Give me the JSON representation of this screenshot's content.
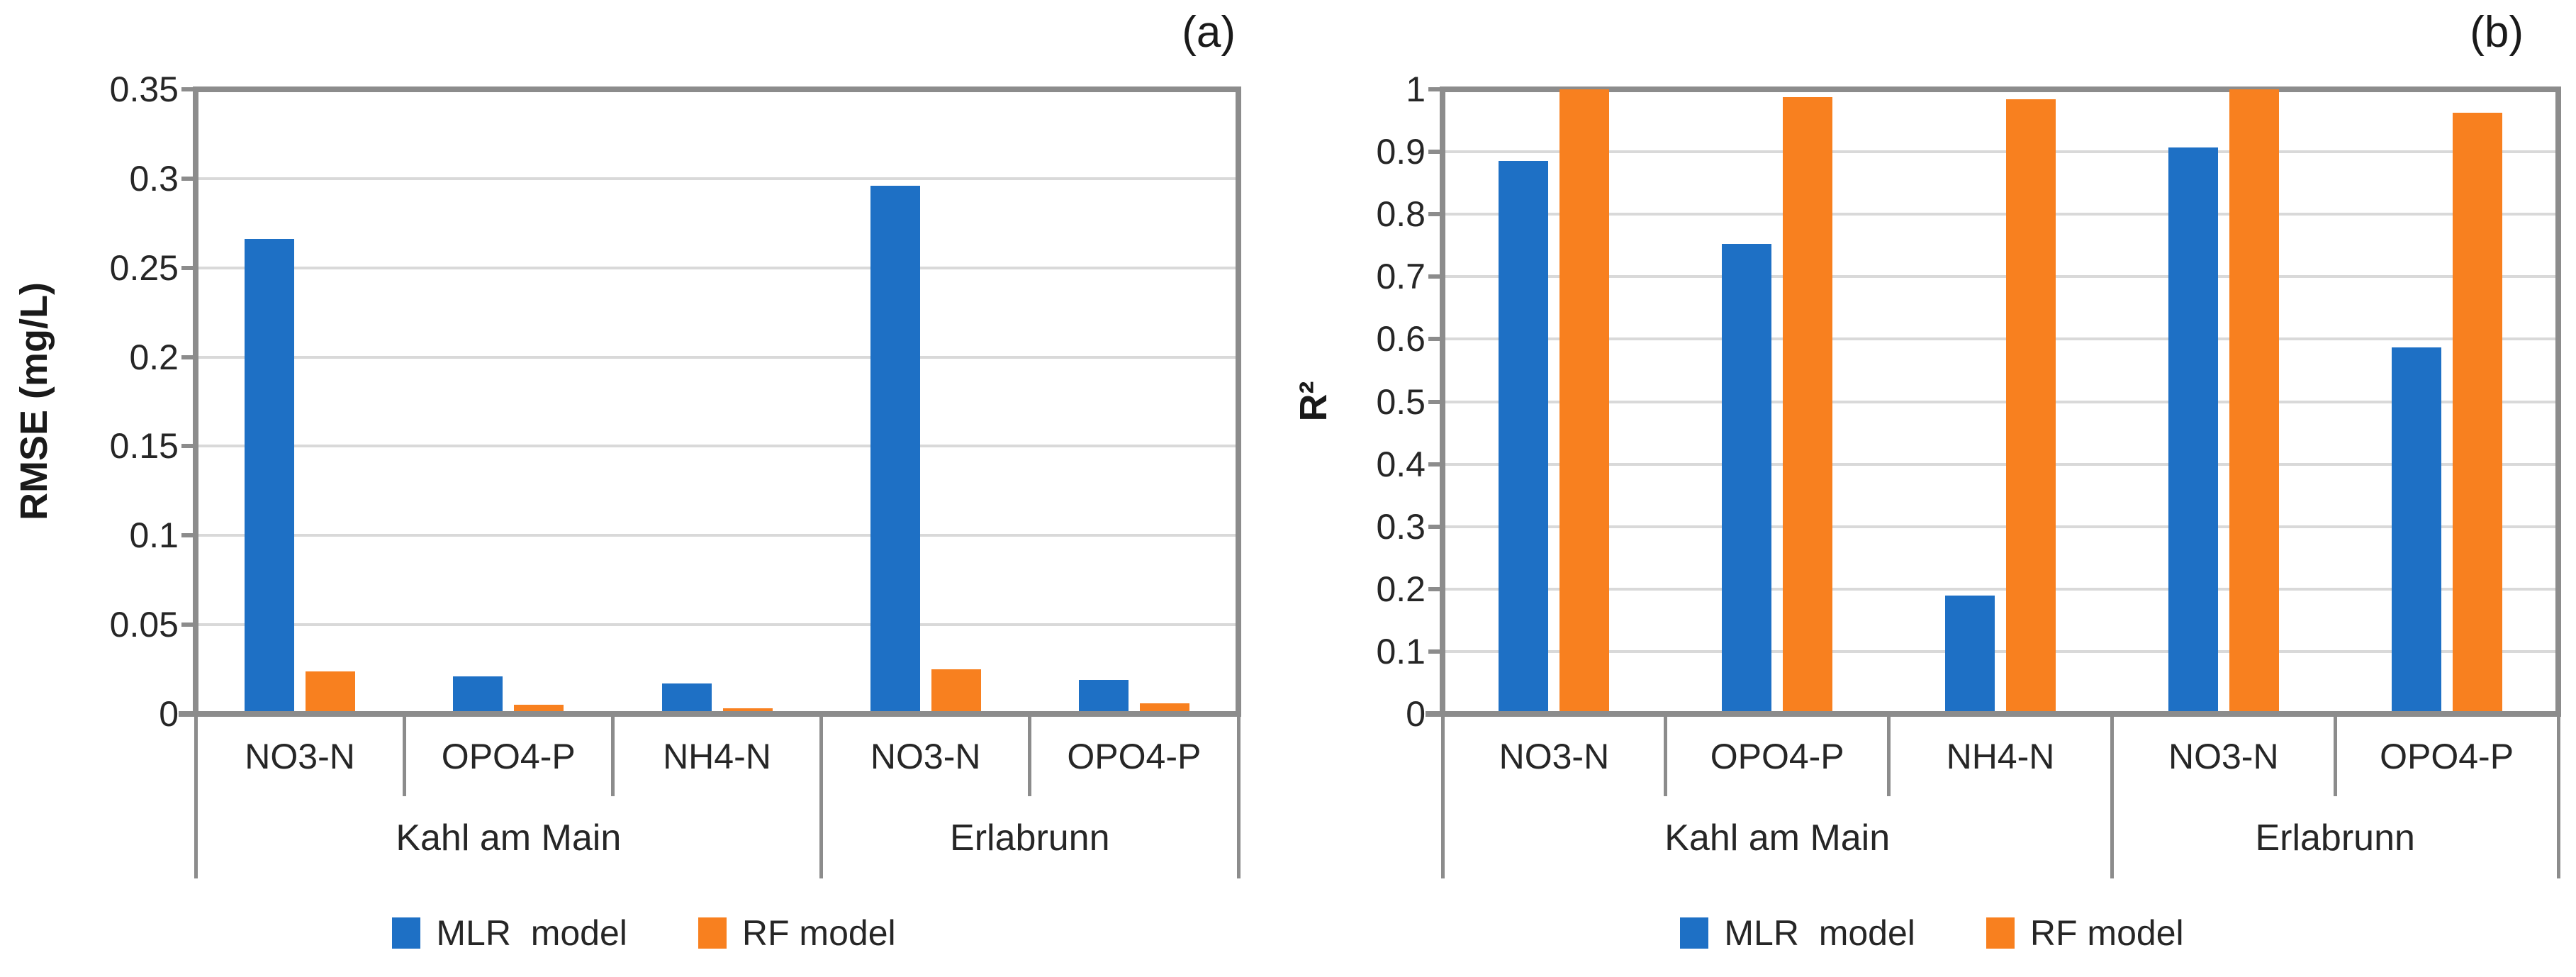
{
  "colors": {
    "mlr_blue": "#1e70c5",
    "rf_orange": "#f8801f",
    "gridline": "#d9d9d9",
    "axis_line": "#8c8c8c",
    "label_text": "#262626"
  },
  "chart_data": [
    {
      "id": "a",
      "type": "bar",
      "panel_label": "(a)",
      "ylabel": "RMSE (mg/L)",
      "ylim": [
        0,
        0.35
      ],
      "grid": true,
      "legend_position": "bottom",
      "yticks": [
        "0.35",
        "0.3",
        "0.25",
        "0.2",
        "0.15",
        "0.1",
        "0.05",
        "0"
      ],
      "categories": [
        "NO3-N",
        "OPO4-P",
        "NH4-N",
        "NO3-N",
        "OPO4-P"
      ],
      "group_labels": [
        {
          "label": "Kahl am Main",
          "span": 3
        },
        {
          "label": "Erlabrunn",
          "span": 2
        }
      ],
      "series": [
        {
          "name": "MLR  model",
          "color": "#1e70c5",
          "values": [
            0.266,
            0.021,
            0.017,
            0.296,
            0.019
          ]
        },
        {
          "name": "RF model",
          "color": "#f8801f",
          "values": [
            0.024,
            0.005,
            0.003,
            0.025,
            0.006
          ]
        }
      ]
    },
    {
      "id": "b",
      "type": "bar",
      "panel_label": "(b)",
      "ylabel": "R²",
      "ylim": [
        0,
        1
      ],
      "grid": true,
      "legend_position": "bottom",
      "yticks": [
        "1",
        "0.9",
        "0.8",
        "0.7",
        "0.6",
        "0.5",
        "0.4",
        "0.3",
        "0.2",
        "0.1",
        "0"
      ],
      "categories": [
        "NO3-N",
        "OPO4-P",
        "NH4-N",
        "NO3-N",
        "OPO4-P"
      ],
      "group_labels": [
        {
          "label": "Kahl am Main",
          "span": 3
        },
        {
          "label": "Erlabrunn",
          "span": 2
        }
      ],
      "series": [
        {
          "name": "MLR  model",
          "color": "#1e70c5",
          "values": [
            0.885,
            0.752,
            0.19,
            0.907,
            0.587
          ]
        },
        {
          "name": "RF model",
          "color": "#f8801f",
          "values": [
            1.0,
            0.988,
            0.984,
            1.0,
            0.962
          ]
        }
      ]
    }
  ]
}
